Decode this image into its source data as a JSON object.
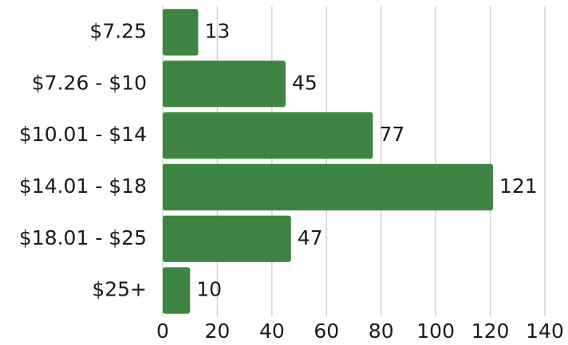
{
  "chart_data": {
    "type": "bar",
    "orientation": "horizontal",
    "categories": [
      "$7.25",
      "$7.26 - $10",
      "$10.01 - $14",
      "$14.01 - $18",
      "$18.01 - $25",
      "$25+"
    ],
    "values": [
      13,
      45,
      77,
      121,
      47,
      10
    ],
    "color": "#3d8540",
    "xlim": [
      0,
      140
    ],
    "xticks": [
      0,
      20,
      40,
      60,
      80,
      100,
      120,
      140
    ],
    "grid": true
  }
}
